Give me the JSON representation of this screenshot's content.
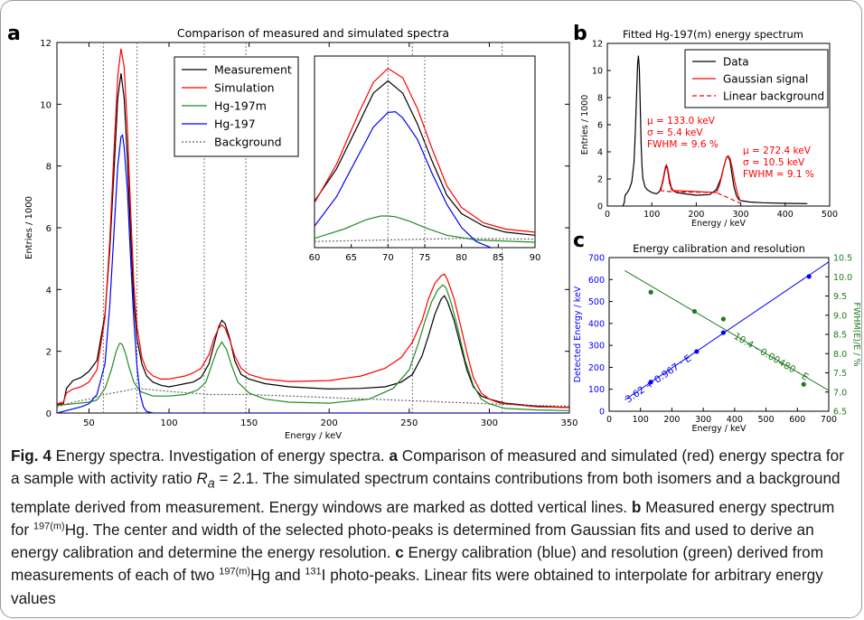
{
  "panel_letters": {
    "a": "a",
    "b": "b",
    "c": "c"
  },
  "chart_data": [
    {
      "type": "line",
      "panel": "a",
      "title": "Comparison of measured and simulated spectra",
      "xlabel": "Energy / keV",
      "ylabel": "Entries / 1000",
      "xlim": [
        30,
        350
      ],
      "ylim": [
        0,
        12
      ],
      "xticks": [
        50,
        100,
        150,
        200,
        250,
        300,
        350
      ],
      "yticks": [
        0,
        2,
        4,
        6,
        8,
        10,
        12
      ],
      "energy_windows": [
        59,
        80,
        122,
        148,
        252,
        308
      ],
      "legend_position": "top-center",
      "series": [
        {
          "name": "Measurement",
          "color": "#000000",
          "style": "solid",
          "x": [
            30,
            34,
            36,
            40,
            45,
            50,
            55,
            60,
            63,
            66,
            68,
            70,
            72,
            74,
            76,
            78,
            80,
            83,
            86,
            90,
            95,
            100,
            105,
            110,
            115,
            120,
            125,
            128,
            131,
            133,
            135,
            138,
            141,
            145,
            150,
            160,
            175,
            200,
            220,
            235,
            245,
            252,
            258,
            262,
            266,
            270,
            272,
            274,
            278,
            282,
            286,
            290,
            295,
            300,
            305,
            310,
            330,
            350
          ],
          "y": [
            0.28,
            0.3,
            0.8,
            1.05,
            1.15,
            1.35,
            1.7,
            3.2,
            5.3,
            8.2,
            10.2,
            11.0,
            10.2,
            8.2,
            5.8,
            3.6,
            2.4,
            1.6,
            1.2,
            1.0,
            0.9,
            0.85,
            0.9,
            0.95,
            1.0,
            1.15,
            1.6,
            2.2,
            2.8,
            3.0,
            2.9,
            2.4,
            1.7,
            1.25,
            1.1,
            0.95,
            0.85,
            0.78,
            0.8,
            0.85,
            1.0,
            1.25,
            1.85,
            2.5,
            3.2,
            3.7,
            3.8,
            3.6,
            3.0,
            2.2,
            1.4,
            0.85,
            0.55,
            0.45,
            0.38,
            0.32,
            0.22,
            0.18
          ]
        },
        {
          "name": "Simulation",
          "color": "#ff0000",
          "style": "solid",
          "x": [
            30,
            34,
            36,
            40,
            45,
            50,
            55,
            60,
            63,
            66,
            68,
            70,
            72,
            74,
            76,
            78,
            80,
            83,
            86,
            90,
            95,
            100,
            105,
            110,
            115,
            120,
            125,
            128,
            131,
            133,
            135,
            138,
            141,
            145,
            150,
            160,
            175,
            200,
            220,
            235,
            245,
            252,
            258,
            262,
            266,
            270,
            272,
            274,
            278,
            282,
            286,
            290,
            295,
            300,
            305,
            310,
            330,
            350
          ],
          "y": [
            0.3,
            0.35,
            0.65,
            0.78,
            0.85,
            1.0,
            1.4,
            3.1,
            5.6,
            8.9,
            10.9,
            11.8,
            11.2,
            9.2,
            6.6,
            4.2,
            2.8,
            1.8,
            1.4,
            1.2,
            1.1,
            1.1,
            1.15,
            1.2,
            1.3,
            1.45,
            1.9,
            2.4,
            2.75,
            2.85,
            2.75,
            2.35,
            1.85,
            1.45,
            1.25,
            1.1,
            1.02,
            1.05,
            1.2,
            1.45,
            1.8,
            2.3,
            3.0,
            3.7,
            4.2,
            4.45,
            4.5,
            4.3,
            3.7,
            2.85,
            1.95,
            1.15,
            0.65,
            0.45,
            0.35,
            0.3,
            0.2,
            0.18
          ]
        },
        {
          "name": "Hg-197m",
          "color": "#228b22",
          "style": "solid",
          "x": [
            30,
            40,
            50,
            55,
            60,
            64,
            67,
            69,
            70,
            71,
            73,
            75,
            78,
            82,
            90,
            100,
            110,
            118,
            123,
            127,
            130,
            133,
            136,
            139,
            143,
            150,
            160,
            175,
            200,
            225,
            240,
            250,
            256,
            260,
            264,
            268,
            271,
            273,
            276,
            280,
            285,
            290,
            295,
            300,
            310,
            330,
            350
          ],
          "y": [
            0.25,
            0.3,
            0.35,
            0.42,
            0.8,
            1.4,
            2.0,
            2.25,
            2.25,
            2.2,
            1.9,
            1.5,
            1.0,
            0.7,
            0.55,
            0.55,
            0.6,
            0.75,
            1.0,
            1.6,
            2.05,
            2.3,
            2.05,
            1.55,
            1.0,
            0.65,
            0.45,
            0.35,
            0.32,
            0.45,
            0.8,
            1.4,
            2.3,
            3.0,
            3.6,
            4.0,
            4.15,
            4.05,
            3.6,
            2.8,
            1.7,
            0.9,
            0.45,
            0.3,
            0.15,
            0.1,
            0.08
          ]
        },
        {
          "name": "Hg-197",
          "color": "#0000ff",
          "style": "solid",
          "x": [
            30,
            45,
            50,
            55,
            60,
            63,
            66,
            68,
            70,
            71,
            72,
            74,
            76,
            78,
            80,
            82,
            84,
            86,
            90,
            100,
            350
          ],
          "y": [
            0,
            0.2,
            0.3,
            0.6,
            1.6,
            3.5,
            6.2,
            8.0,
            8.95,
            9.0,
            8.6,
            7.2,
            5.0,
            3.0,
            1.5,
            0.6,
            0.2,
            0.05,
            0,
            0,
            0
          ]
        },
        {
          "name": "Background",
          "color": "#666666",
          "style": "dotted",
          "x": [
            30,
            40,
            50,
            60,
            70,
            80,
            100,
            125,
            150,
            175,
            200,
            225,
            250,
            275,
            300,
            325,
            350
          ],
          "y": [
            0.2,
            0.35,
            0.45,
            0.6,
            0.7,
            0.8,
            0.7,
            0.6,
            0.6,
            0.55,
            0.5,
            0.45,
            0.4,
            0.35,
            0.3,
            0.25,
            0.22
          ]
        }
      ],
      "inset": {
        "xlim": [
          60,
          90
        ],
        "xticks": [
          60,
          65,
          70,
          75,
          80,
          85,
          90
        ],
        "ylim": [
          0,
          12
        ]
      }
    },
    {
      "type": "line",
      "panel": "b",
      "title": "Fitted Hg-197(m) energy spectrum",
      "xlabel": "Energy / keV",
      "ylabel": "Entries / 1000",
      "xlim": [
        0,
        500
      ],
      "ylim": [
        0,
        12
      ],
      "xticks": [
        0,
        100,
        200,
        300,
        400,
        500
      ],
      "yticks": [
        0,
        2,
        4,
        6,
        8,
        10,
        12
      ],
      "legend_position": "top-right",
      "series": [
        {
          "name": "Data",
          "color": "#000000",
          "style": "solid",
          "x": [
            35,
            38,
            40,
            45,
            50,
            55,
            60,
            63,
            66,
            68,
            70,
            72,
            74,
            76,
            78,
            80,
            85,
            90,
            100,
            110,
            115,
            120,
            125,
            130,
            133,
            136,
            140,
            145,
            155,
            175,
            200,
            230,
            245,
            255,
            262,
            268,
            272,
            276,
            280,
            285,
            290,
            295,
            300,
            320,
            350,
            400,
            450
          ],
          "y": [
            0,
            0.25,
            0.8,
            1.0,
            1.3,
            1.8,
            3.2,
            5.5,
            8.5,
            10.5,
            11.1,
            10.2,
            7.5,
            4.6,
            2.9,
            2.0,
            1.4,
            1.2,
            1.0,
            0.9,
            1.0,
            1.2,
            1.8,
            2.7,
            3.0,
            2.6,
            1.7,
            1.2,
            1.0,
            0.9,
            0.8,
            0.85,
            1.2,
            2.0,
            2.9,
            3.6,
            3.7,
            3.3,
            2.4,
            1.4,
            0.8,
            0.5,
            0.4,
            0.3,
            0.25,
            0.2,
            0.18
          ]
        },
        {
          "name": "Gaussian signal",
          "color": "#ff0000",
          "style": "solid",
          "x": [
            118,
            122,
            126,
            129,
            131,
            133,
            135,
            137,
            140,
            144,
            148,
            245,
            252,
            258,
            263,
            268,
            272,
            276,
            281,
            286,
            292,
            298
          ],
          "y": [
            1.2,
            1.5,
            2.1,
            2.65,
            2.95,
            3.0,
            2.9,
            2.55,
            1.95,
            1.4,
            1.15,
            1.0,
            1.5,
            2.3,
            3.05,
            3.55,
            3.7,
            3.5,
            2.8,
            1.9,
            1.0,
            0.45
          ]
        },
        {
          "name": "Linear background",
          "color": "#ff0000",
          "style": "dashed",
          "x": [
            118,
            148,
            245,
            300
          ],
          "y": [
            1.15,
            1.05,
            1.0,
            0.2
          ]
        }
      ],
      "annotations": [
        {
          "lines": [
            "μ = 133.0 keV",
            "σ = 5.4 keV",
            "FWHM = 9.6 %"
          ]
        },
        {
          "lines": [
            "μ = 272.4 keV",
            "σ = 10.5 keV",
            "FWHM = 9.1 %"
          ]
        }
      ]
    },
    {
      "type": "scatter",
      "panel": "c",
      "title": "Energy calibration and resolution",
      "xlabel": "Energy / keV",
      "ylabel_left": "Detected Energy / keV",
      "ylabel_right": "FWHM(E)/E / %",
      "xlim": [
        0,
        700
      ],
      "ylim_left": [
        0,
        700
      ],
      "ylim_right": [
        6.5,
        10.5
      ],
      "xticks": [
        0,
        100,
        200,
        300,
        400,
        500,
        600,
        700
      ],
      "yticks_left": [
        0,
        100,
        200,
        300,
        400,
        500,
        600,
        700
      ],
      "yticks_right": [
        6.5,
        7.0,
        7.5,
        8.0,
        8.5,
        9.0,
        9.5,
        10.0,
        10.5
      ],
      "series": [
        {
          "name": "Detected energy",
          "axis": "left",
          "color": "#0000ff",
          "points": [
            {
              "x": 133,
              "y": 133
            },
            {
              "x": 279,
              "y": 272
            },
            {
              "x": 364,
              "y": 358
            },
            {
              "x": 637,
              "y": 614
            }
          ],
          "fit": {
            "label": "3.62 + 0.967 · E",
            "intercept": 3.62,
            "slope": 0.967,
            "x_range": [
              50,
              700
            ]
          }
        },
        {
          "name": "Resolution",
          "axis": "right",
          "color": "#1f7a1f",
          "points": [
            {
              "x": 133,
              "y": 9.6
            },
            {
              "x": 272,
              "y": 9.1
            },
            {
              "x": 364,
              "y": 8.9
            },
            {
              "x": 620,
              "y": 7.2
            }
          ],
          "fit": {
            "label": "10.4 - 0.00480 · E",
            "intercept": 10.4,
            "slope": -0.0048,
            "x_range": [
              50,
              700
            ]
          }
        }
      ]
    }
  ],
  "caption": {
    "fig_label": "Fig. 4",
    "t1": " Energy spectra. Investigation of energy spectra. ",
    "a": "a",
    "t2": " Comparison of measured and simulated (red) energy spectra for a sample with activity ratio ",
    "ra_R": "R",
    "ra_sub": "a",
    "ra_val": " = 2.1. The simulated spectrum contains contributions from both isomers and a background template derived from measurement. Energy windows are marked as dotted vertical lines. ",
    "b": "b",
    "t3": " Measured energy spectrum for ",
    "sup1": "197(m)",
    "t4": "Hg. The center and width of the selected photo-peaks is determined from Gaussian fits and used to derive an energy calibration and determine the energy resolution. ",
    "c": "c",
    "t5": " Energy calibration (blue) and resolution (green) derived from measurements of each of two ",
    "sup2": "197(m)",
    "t6": "Hg and ",
    "sup3": "131",
    "t7": "I photo-peaks. Linear fits were obtained to interpolate for arbitrary energy values"
  }
}
